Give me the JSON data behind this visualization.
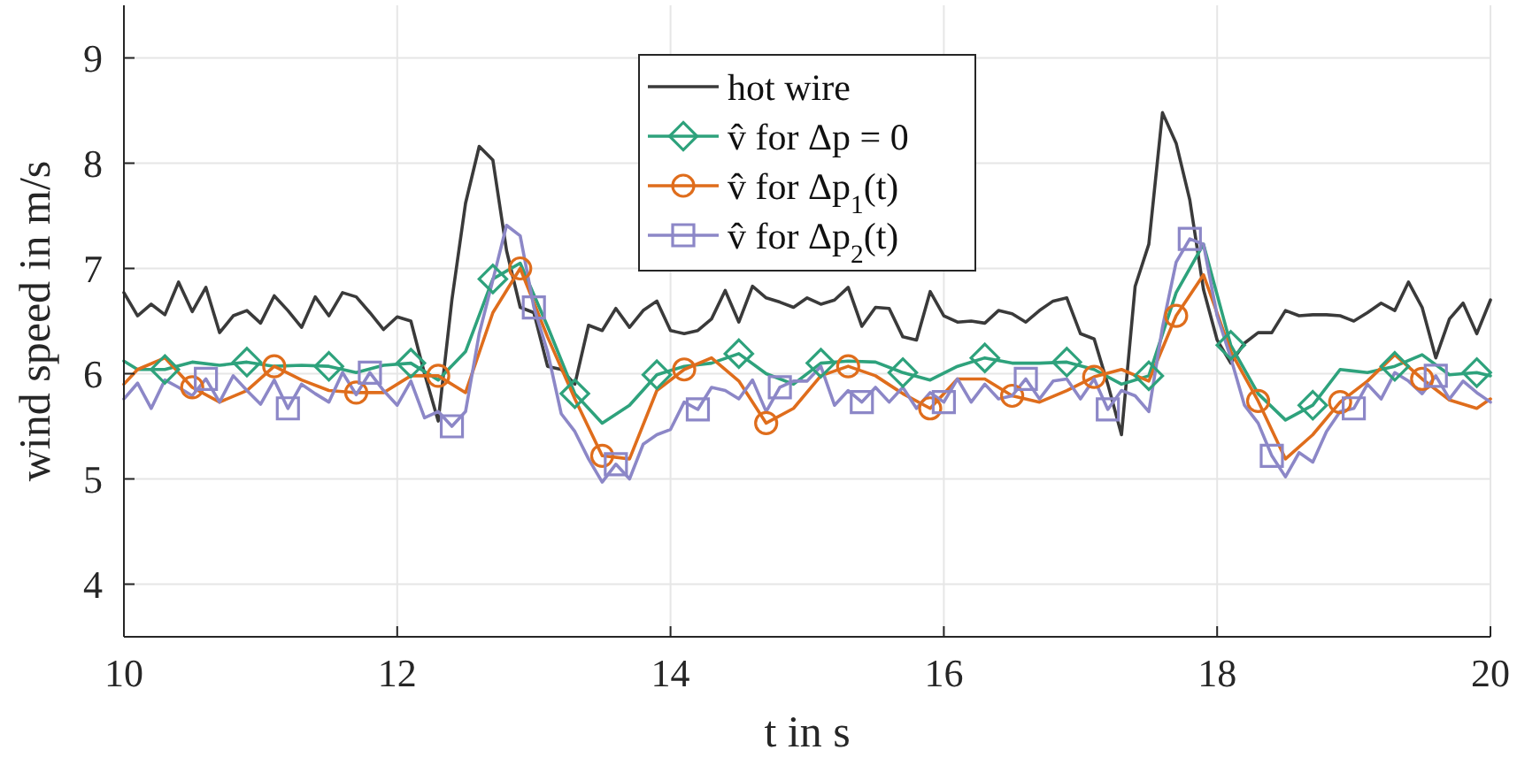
{
  "chart_data": {
    "type": "line",
    "xlabel": "t in s",
    "ylabel": "wind speed in m/s",
    "xlim": [
      10,
      20
    ],
    "ylim": [
      3.5,
      9.5
    ],
    "xticks": [
      10,
      12,
      14,
      16,
      18,
      20
    ],
    "yticks": [
      4,
      5,
      6,
      7,
      8,
      9
    ],
    "grid": true,
    "legend": "top",
    "x": [
      10,
      10.1,
      10.2,
      10.3,
      10.4,
      10.5,
      10.6,
      10.7,
      10.8,
      10.9,
      11,
      11.1,
      11.2,
      11.3,
      11.4,
      11.5,
      11.6,
      11.7,
      11.8,
      11.9,
      12,
      12.1,
      12.2,
      12.3,
      12.4,
      12.5,
      12.6,
      12.7,
      12.8,
      12.9,
      13,
      13.1,
      13.2,
      13.3,
      13.4,
      13.5,
      13.6,
      13.7,
      13.8,
      13.9,
      14,
      14.1,
      14.2,
      14.3,
      14.4,
      14.5,
      14.6,
      14.7,
      14.8,
      14.9,
      15,
      15.1,
      15.2,
      15.3,
      15.4,
      15.5,
      15.6,
      15.7,
      15.8,
      15.9,
      16,
      16.1,
      16.2,
      16.3,
      16.4,
      16.5,
      16.6,
      16.7,
      16.8,
      16.9,
      17,
      17.1,
      17.2,
      17.3,
      17.4,
      17.5,
      17.6,
      17.7,
      17.8,
      17.9,
      18,
      18.1,
      18.2,
      18.3,
      18.4,
      18.5,
      18.6,
      18.7,
      18.8,
      18.9,
      19,
      19.1,
      19.2,
      19.3,
      19.4,
      19.5,
      19.6,
      19.7,
      19.8,
      19.9,
      20
    ],
    "series": [
      {
        "name": "hot wire",
        "color": "#3a3a3a",
        "marker": "none",
        "values": [
          6.77,
          6.55,
          6.66,
          6.56,
          6.87,
          6.59,
          6.82,
          6.39,
          6.55,
          6.6,
          6.48,
          6.74,
          6.6,
          6.44,
          6.73,
          6.55,
          6.77,
          6.73,
          6.58,
          6.42,
          6.54,
          6.5,
          6.0,
          5.55,
          6.7,
          7.62,
          8.16,
          8.03,
          7.17,
          6.63,
          6.58,
          6.07,
          6.04,
          5.9,
          6.46,
          6.41,
          6.62,
          6.44,
          6.6,
          6.69,
          6.41,
          6.38,
          6.41,
          6.52,
          6.79,
          6.49,
          6.83,
          6.72,
          6.68,
          6.63,
          6.72,
          6.66,
          6.7,
          6.82,
          6.45,
          6.63,
          6.62,
          6.35,
          6.32,
          6.78,
          6.55,
          6.49,
          6.5,
          6.48,
          6.6,
          6.57,
          6.49,
          6.6,
          6.69,
          6.72,
          6.38,
          6.33,
          5.9,
          5.42,
          6.83,
          7.23,
          8.48,
          8.19,
          7.65,
          6.8,
          6.32,
          6.1,
          6.29,
          6.39,
          6.39,
          6.6,
          6.55,
          6.56,
          6.56,
          6.55,
          6.5,
          6.58,
          6.67,
          6.6,
          6.87,
          6.63,
          6.15,
          6.52,
          6.67,
          6.38,
          6.7
        ]
      },
      {
        "color": "#2ea27c",
        "x": [
          10,
          10.1,
          10.3,
          10.5,
          10.7,
          10.9,
          11.1,
          11.3,
          11.5,
          11.7,
          11.9,
          12.1,
          12.3,
          12.5,
          12.7,
          12.9,
          13.1,
          13.3,
          13.5,
          13.7,
          13.9,
          14.1,
          14.3,
          14.5,
          14.7,
          14.9,
          15.1,
          15.3,
          15.5,
          15.7,
          15.9,
          16.1,
          16.3,
          16.5,
          16.7,
          16.9,
          17.1,
          17.3,
          17.5,
          17.7,
          17.9,
          18.1,
          18.3,
          18.5,
          18.7,
          18.9,
          19.1,
          19.3,
          19.5,
          19.7,
          19.9,
          20
        ],
        "values": [
          6.12,
          6.04,
          6.04,
          6.11,
          6.08,
          6.11,
          6.07,
          6.08,
          6.07,
          6.01,
          6.08,
          6.1,
          5.94,
          6.21,
          6.9,
          7.05,
          6.45,
          5.81,
          5.53,
          5.7,
          5.99,
          6.07,
          6.1,
          6.19,
          6.0,
          5.9,
          6.1,
          6.12,
          6.11,
          6.01,
          5.94,
          6.07,
          6.15,
          6.1,
          6.1,
          6.11,
          6.04,
          5.9,
          5.98,
          6.77,
          7.23,
          6.27,
          5.81,
          5.56,
          5.7,
          6.04,
          6.01,
          6.07,
          6.18,
          5.99,
          6.01,
          5.98
        ]
      },
      {
        "color": "#df6d1c",
        "x": [
          10,
          10.1,
          10.3,
          10.5,
          10.7,
          10.9,
          11.1,
          11.3,
          11.5,
          11.7,
          11.9,
          12.1,
          12.3,
          12.5,
          12.7,
          12.9,
          13.1,
          13.3,
          13.5,
          13.7,
          13.9,
          14.1,
          14.3,
          14.5,
          14.7,
          14.9,
          15.1,
          15.3,
          15.5,
          15.7,
          15.9,
          16.1,
          16.3,
          16.5,
          16.7,
          16.9,
          17.1,
          17.3,
          17.5,
          17.7,
          17.9,
          18.1,
          18.3,
          18.5,
          18.7,
          18.9,
          19.1,
          19.3,
          19.5,
          19.7,
          19.9,
          20
        ],
        "values": [
          5.9,
          6.04,
          6.15,
          5.87,
          5.73,
          5.84,
          6.07,
          5.94,
          5.84,
          5.82,
          5.82,
          5.98,
          5.98,
          5.82,
          6.58,
          7.0,
          6.35,
          5.76,
          5.22,
          5.19,
          5.84,
          6.04,
          6.15,
          5.93,
          5.53,
          5.67,
          5.98,
          6.07,
          5.98,
          5.81,
          5.67,
          5.95,
          5.95,
          5.79,
          5.73,
          5.84,
          5.97,
          6.04,
          5.93,
          6.55,
          6.94,
          6.21,
          5.74,
          5.19,
          5.42,
          5.73,
          5.93,
          6.18,
          5.95,
          5.75,
          5.67,
          5.76
        ]
      },
      {
        "color": "#8c87c7",
        "values": [
          5.76,
          5.91,
          5.67,
          5.94,
          5.87,
          5.79,
          5.95,
          5.73,
          5.98,
          5.84,
          5.71,
          5.94,
          5.67,
          5.9,
          5.81,
          5.73,
          6.01,
          5.8,
          6.01,
          5.84,
          5.7,
          5.93,
          5.58,
          5.64,
          5.5,
          5.64,
          6.38,
          6.89,
          7.41,
          7.31,
          6.63,
          6.21,
          5.62,
          5.45,
          5.19,
          4.97,
          5.14,
          5.0,
          5.33,
          5.42,
          5.47,
          5.73,
          5.66,
          5.87,
          5.84,
          5.76,
          5.94,
          5.64,
          5.87,
          5.93,
          5.93,
          6.07,
          5.7,
          5.84,
          5.73,
          5.87,
          5.73,
          5.87,
          5.67,
          5.82,
          5.73,
          5.95,
          5.73,
          5.9,
          5.76,
          5.79,
          5.95,
          5.76,
          5.93,
          5.95,
          5.76,
          5.95,
          5.66,
          5.84,
          5.79,
          5.64,
          6.44,
          7.06,
          7.28,
          7.23,
          6.55,
          6.15,
          5.7,
          5.53,
          5.22,
          5.02,
          5.25,
          5.16,
          5.45,
          5.64,
          5.67,
          5.9,
          5.76,
          6.01,
          5.93,
          5.81,
          5.98,
          5.76,
          5.93,
          5.82,
          5.73
        ]
      },
      {
        "type": "scatter",
        "name": "v̂ for Δp = 0",
        "color": "#2ea27c",
        "marker": "diamond",
        "x": [
          10.3,
          10.9,
          11.5,
          12.1,
          12.7,
          13.3,
          13.9,
          14.5,
          15.1,
          15.7,
          16.3,
          16.9,
          17.5,
          18.1,
          18.7,
          19.3,
          19.9
        ],
        "values": [
          6.04,
          6.11,
          6.07,
          6.1,
          6.9,
          5.81,
          5.99,
          6.19,
          6.1,
          6.01,
          6.15,
          6.11,
          5.98,
          6.27,
          5.7,
          6.07,
          6.01
        ]
      },
      {
        "type": "scatter",
        "name": "v̂ for Δp$_{1}$(t)",
        "color": "#df6d1c",
        "marker": "circle",
        "x": [
          10.5,
          11.1,
          11.7,
          12.3,
          12.9,
          13.5,
          14.1,
          14.7,
          15.3,
          15.9,
          16.5,
          17.1,
          17.7,
          18.3,
          18.9,
          19.5
        ],
        "values": [
          5.87,
          6.07,
          5.82,
          5.98,
          7.0,
          5.22,
          6.04,
          5.53,
          6.07,
          5.67,
          5.79,
          5.97,
          6.55,
          5.74,
          5.73,
          5.95
        ]
      },
      {
        "type": "scatter",
        "name": "v̂ for Δp$_{2}$(t)",
        "color": "#8c87c7",
        "marker": "square",
        "x": [
          10.6,
          11.2,
          11.8,
          12.4,
          13,
          13.6,
          14.2,
          14.8,
          15.4,
          16,
          16.6,
          17.2,
          17.8,
          18.4,
          19,
          19.6
        ],
        "values": [
          5.95,
          5.67,
          6.01,
          5.5,
          6.63,
          5.14,
          5.66,
          5.87,
          5.73,
          5.73,
          5.95,
          5.66,
          7.28,
          5.22,
          5.67,
          5.98
        ]
      }
    ]
  }
}
